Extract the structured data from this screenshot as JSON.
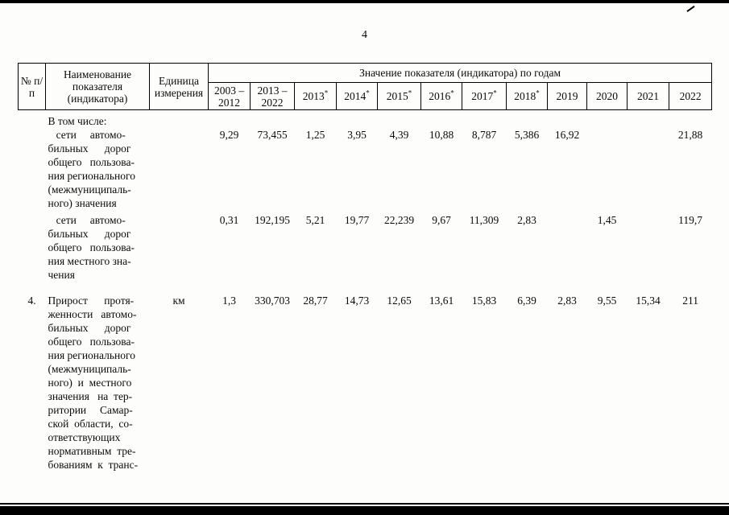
{
  "page": {
    "number": "4"
  },
  "table": {
    "header": {
      "num": "№ п/п",
      "name": "Наименование показателя (индикатора)",
      "unit": "Единица измерения",
      "years_title": "Значение показателя (индикатора) по годам",
      "year_cols": [
        {
          "text": "2003 – 2012",
          "star": false
        },
        {
          "text": "2013 – 2022",
          "star": false
        },
        {
          "text": "2013",
          "star": true
        },
        {
          "text": "2014",
          "star": true
        },
        {
          "text": "2015",
          "star": true
        },
        {
          "text": "2016",
          "star": true
        },
        {
          "text": "2017",
          "star": true
        },
        {
          "text": "2018",
          "star": true
        },
        {
          "text": "2019",
          "star": false
        },
        {
          "text": "2020",
          "star": false
        },
        {
          "text": "2021",
          "star": false
        },
        {
          "text": "2022",
          "star": false
        }
      ]
    },
    "rows": [
      {
        "num": "",
        "name": "В том числе:",
        "unit": "",
        "values": [
          "",
          "",
          "",
          "",
          "",
          "",
          "",
          "",
          "",
          "",
          "",
          ""
        ]
      },
      {
        "num": "",
        "name": "   сети     автомо-\nбильных      дорог\nобщего   пользова-\nния регионального\n(межмуниципаль-\nного) значения",
        "unit": "",
        "values": [
          "9,29",
          "73,455",
          "1,25",
          "3,95",
          "4,39",
          "10,88",
          "8,787",
          "5,386",
          "16,92",
          "",
          "",
          "21,88"
        ]
      },
      {
        "num": "",
        "name": "   сети     автомо-\nбильных      дорог\nобщего   пользова-\nния местного зна-\nчения",
        "unit": "",
        "values": [
          "0,31",
          "192,195",
          "5,21",
          "19,77",
          "22,239",
          "9,67",
          "11,309",
          "2,83",
          "",
          "1,45",
          "",
          "119,7"
        ]
      },
      {
        "num": "4.",
        "name": "Прирост      протя-\nженности   автомо-\nбильных      дорог\nобщего   пользова-\nния регионального\n(межмуниципаль-\nного)  и  местного\nзначения   на  тер-\nритории     Самар-\nской  области,  со-\nответствующих\nнормативным  тре-\nбованиям  к  транс-",
        "unit": "км",
        "values": [
          "1,3",
          "330,703",
          "28,77",
          "14,73",
          "12,65",
          "13,61",
          "15,83",
          "6,39",
          "2,83",
          "9,55",
          "15,34",
          "211"
        ]
      }
    ]
  }
}
